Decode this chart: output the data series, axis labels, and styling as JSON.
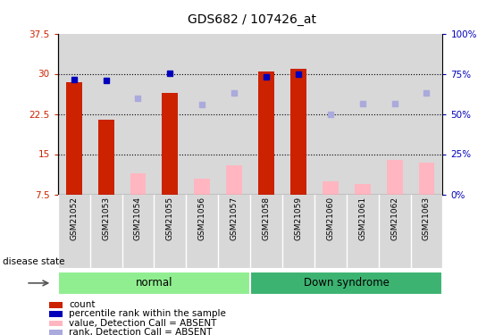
{
  "title": "GDS682 / 107426_at",
  "samples": [
    "GSM21052",
    "GSM21053",
    "GSM21054",
    "GSM21055",
    "GSM21056",
    "GSM21057",
    "GSM21058",
    "GSM21059",
    "GSM21060",
    "GSM21061",
    "GSM21062",
    "GSM21063"
  ],
  "groups": [
    {
      "label": "normal",
      "color": "#90EE90",
      "count": 6
    },
    {
      "label": "Down syndrome",
      "color": "#3CB371",
      "count": 6
    }
  ],
  "red_bars": [
    28.5,
    21.5,
    null,
    26.5,
    null,
    null,
    30.5,
    31.0,
    null,
    null,
    null,
    null
  ],
  "pink_bars": [
    null,
    null,
    11.5,
    null,
    10.5,
    13.0,
    null,
    null,
    10.0,
    9.5,
    14.0,
    13.5
  ],
  "blue_squares": [
    29.0,
    28.7,
    null,
    30.1,
    null,
    null,
    29.5,
    30.0,
    null,
    null,
    null,
    null
  ],
  "light_blue_squares": [
    null,
    null,
    25.5,
    null,
    24.2,
    26.5,
    null,
    null,
    22.5,
    24.5,
    24.5,
    26.5
  ],
  "ylim_left": [
    7.5,
    37.5
  ],
  "ylim_right": [
    0,
    100
  ],
  "yticks_left": [
    7.5,
    15.0,
    22.5,
    30.0,
    37.5
  ],
  "yticks_right": [
    0,
    25,
    50,
    75,
    100
  ],
  "ytick_labels_left": [
    "7.5",
    "15",
    "22.5",
    "30",
    "37.5"
  ],
  "ytick_labels_right": [
    "0%",
    "25%",
    "50%",
    "75%",
    "100%"
  ],
  "grid_lines": [
    15.0,
    22.5,
    30.0
  ],
  "bar_width": 0.5,
  "red_color": "#CC2200",
  "pink_color": "#FFB6C1",
  "blue_color": "#0000BB",
  "light_blue_color": "#AAAADD",
  "bg_color": "#D8D8D8",
  "disease_state_label": "disease state"
}
